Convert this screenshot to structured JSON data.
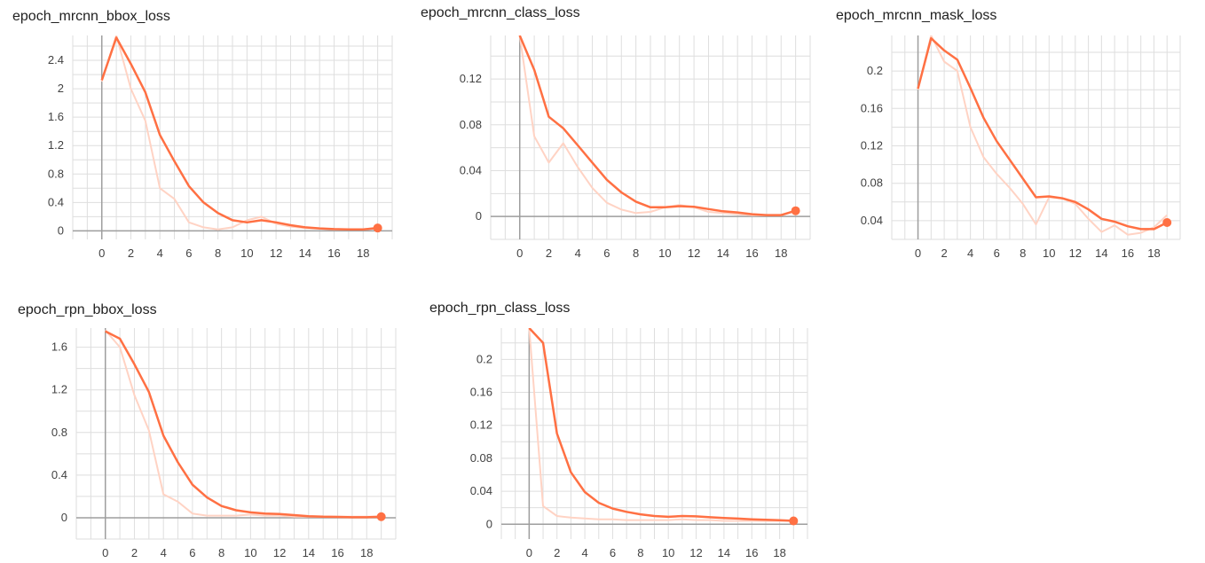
{
  "colors": {
    "smoothed": "#ff7043",
    "raw": "#ffd3c4",
    "grid": "#dedede",
    "axis": "#9e9e9e"
  },
  "chart_data": [
    {
      "id": "c1",
      "type": "line",
      "title": "epoch_mrcnn_bbox_loss",
      "xlim": [
        -2,
        20
      ],
      "ylim": [
        -0.12,
        2.75
      ],
      "xticks": [
        0,
        2,
        4,
        6,
        8,
        10,
        12,
        14,
        16,
        18
      ],
      "yticks": [
        0,
        0.4,
        0.8,
        1.2,
        1.6,
        2,
        2.4
      ],
      "ytick_labels": [
        "0",
        "0.4",
        "0.8",
        "1.2",
        "1.6",
        "2",
        "2.4"
      ],
      "series": [
        {
          "kind": "raw",
          "x": [
            0,
            1,
            2,
            3,
            4,
            5,
            6,
            7,
            8,
            9,
            10,
            11,
            12,
            13,
            14,
            15,
            16,
            17,
            18,
            19
          ],
          "values": [
            2.1,
            2.75,
            2.0,
            1.55,
            0.6,
            0.45,
            0.12,
            0.05,
            0.02,
            0.05,
            0.15,
            0.2,
            0.1,
            0.06,
            0.04,
            0.03,
            0.02,
            0.02,
            0.02,
            0.05
          ]
        },
        {
          "kind": "smoothed",
          "x": [
            0,
            1,
            2,
            3,
            4,
            5,
            6,
            7,
            8,
            9,
            10,
            11,
            12,
            13,
            14,
            15,
            16,
            17,
            18,
            19
          ],
          "values": [
            2.12,
            2.72,
            2.35,
            1.95,
            1.35,
            0.98,
            0.63,
            0.4,
            0.25,
            0.15,
            0.12,
            0.15,
            0.12,
            0.08,
            0.05,
            0.035,
            0.025,
            0.02,
            0.02,
            0.04
          ]
        }
      ]
    },
    {
      "id": "c2",
      "type": "line",
      "title": "epoch_mrcnn_class_loss",
      "xlim": [
        -2,
        20
      ],
      "ylim": [
        -0.02,
        0.158
      ],
      "xticks": [
        0,
        2,
        4,
        6,
        8,
        10,
        12,
        14,
        16,
        18
      ],
      "yticks": [
        0,
        0.04,
        0.08,
        0.12
      ],
      "ytick_labels": [
        "0",
        "0.04",
        "0.08",
        "0.12"
      ],
      "series": [
        {
          "kind": "raw",
          "x": [
            0,
            1,
            2,
            3,
            4,
            5,
            6,
            7,
            8,
            9,
            10,
            11,
            12,
            13,
            14,
            15,
            16,
            17,
            18,
            19
          ],
          "values": [
            0.158,
            0.07,
            0.047,
            0.064,
            0.043,
            0.025,
            0.012,
            0.006,
            0.003,
            0.004,
            0.008,
            0.01,
            0.008,
            0.004,
            0.003,
            0.002,
            0.001,
            0.001,
            0.001,
            0.005
          ]
        },
        {
          "kind": "smoothed",
          "x": [
            0,
            1,
            2,
            3,
            4,
            5,
            6,
            7,
            8,
            9,
            10,
            11,
            12,
            13,
            14,
            15,
            16,
            17,
            18,
            19
          ],
          "values": [
            0.158,
            0.128,
            0.087,
            0.077,
            0.062,
            0.047,
            0.032,
            0.021,
            0.013,
            0.008,
            0.008,
            0.009,
            0.0085,
            0.0065,
            0.0045,
            0.0035,
            0.002,
            0.0012,
            0.0012,
            0.005
          ]
        }
      ]
    },
    {
      "id": "c3",
      "type": "line",
      "title": "epoch_mrcnn_mask_loss",
      "xlim": [
        -2,
        20
      ],
      "ylim": [
        0.02,
        0.238
      ],
      "xticks": [
        0,
        2,
        4,
        6,
        8,
        10,
        12,
        14,
        16,
        18
      ],
      "yticks": [
        0.04,
        0.08,
        0.12,
        0.16,
        0.2
      ],
      "ytick_labels": [
        "0.04",
        "0.08",
        "0.12",
        "0.16",
        "0.2"
      ],
      "series": [
        {
          "kind": "raw",
          "x": [
            0,
            1,
            2,
            3,
            4,
            5,
            6,
            7,
            8,
            9,
            10,
            11,
            12,
            13,
            14,
            15,
            16,
            17,
            18,
            19
          ],
          "values": [
            0.18,
            0.238,
            0.21,
            0.2,
            0.14,
            0.108,
            0.09,
            0.075,
            0.058,
            0.036,
            0.065,
            0.064,
            0.058,
            0.042,
            0.028,
            0.035,
            0.025,
            0.027,
            0.033,
            0.046
          ]
        },
        {
          "kind": "smoothed",
          "x": [
            0,
            1,
            2,
            3,
            4,
            5,
            6,
            7,
            8,
            9,
            10,
            11,
            12,
            13,
            14,
            15,
            16,
            17,
            18,
            19
          ],
          "values": [
            0.181,
            0.235,
            0.222,
            0.212,
            0.182,
            0.15,
            0.125,
            0.105,
            0.085,
            0.065,
            0.066,
            0.064,
            0.06,
            0.052,
            0.042,
            0.039,
            0.034,
            0.031,
            0.031,
            0.038
          ]
        }
      ]
    },
    {
      "id": "c4",
      "type": "line",
      "title": "epoch_rpn_bbox_loss",
      "xlim": [
        -2,
        20
      ],
      "ylim": [
        -0.2,
        1.78
      ],
      "xticks": [
        0,
        2,
        4,
        6,
        8,
        10,
        12,
        14,
        16,
        18
      ],
      "yticks": [
        0,
        0.4,
        0.8,
        1.2,
        1.6
      ],
      "ytick_labels": [
        "0",
        "0.4",
        "0.8",
        "1.2",
        "1.6"
      ],
      "series": [
        {
          "kind": "raw",
          "x": [
            0,
            1,
            2,
            3,
            4,
            5,
            6,
            7,
            8,
            9,
            10,
            11,
            12,
            13,
            14,
            15,
            16,
            17,
            18,
            19
          ],
          "values": [
            1.76,
            1.6,
            1.15,
            0.82,
            0.22,
            0.15,
            0.04,
            0.02,
            0.02,
            0.02,
            0.03,
            0.02,
            0.02,
            0.01,
            0.01,
            0.01,
            0.01,
            0.01,
            0.01,
            0.01
          ]
        },
        {
          "kind": "smoothed",
          "x": [
            0,
            1,
            2,
            3,
            4,
            5,
            6,
            7,
            8,
            9,
            10,
            11,
            12,
            13,
            14,
            15,
            16,
            17,
            18,
            19
          ],
          "values": [
            1.75,
            1.68,
            1.44,
            1.18,
            0.77,
            0.52,
            0.31,
            0.19,
            0.11,
            0.07,
            0.05,
            0.04,
            0.035,
            0.025,
            0.015,
            0.01,
            0.008,
            0.005,
            0.005,
            0.01
          ]
        }
      ]
    },
    {
      "id": "c5",
      "type": "line",
      "title": "epoch_rpn_class_loss",
      "xlim": [
        -2,
        20
      ],
      "ylim": [
        -0.018,
        0.238
      ],
      "xticks": [
        0,
        2,
        4,
        6,
        8,
        10,
        12,
        14,
        16,
        18
      ],
      "yticks": [
        0,
        0.04,
        0.08,
        0.12,
        0.16,
        0.2
      ],
      "ytick_labels": [
        "0",
        "0.04",
        "0.08",
        "0.12",
        "0.16",
        "0.2"
      ],
      "series": [
        {
          "kind": "raw",
          "x": [
            0,
            1,
            2,
            3,
            4,
            5,
            6,
            7,
            8,
            9,
            10,
            11,
            12,
            13,
            14,
            15,
            16,
            17,
            18,
            19
          ],
          "values": [
            0.238,
            0.022,
            0.01,
            0.008,
            0.007,
            0.006,
            0.006,
            0.005,
            0.005,
            0.005,
            0.005,
            0.006,
            0.005,
            0.005,
            0.004,
            0.004,
            0.004,
            0.004,
            0.004,
            0.004
          ]
        },
        {
          "kind": "smoothed",
          "x": [
            0,
            1,
            2,
            3,
            4,
            5,
            6,
            7,
            8,
            9,
            10,
            11,
            12,
            13,
            14,
            15,
            16,
            17,
            18,
            19
          ],
          "values": [
            0.238,
            0.22,
            0.11,
            0.063,
            0.039,
            0.026,
            0.019,
            0.015,
            0.012,
            0.01,
            0.009,
            0.01,
            0.0095,
            0.0085,
            0.0075,
            0.0068,
            0.006,
            0.0055,
            0.0048,
            0.004
          ]
        }
      ]
    }
  ]
}
